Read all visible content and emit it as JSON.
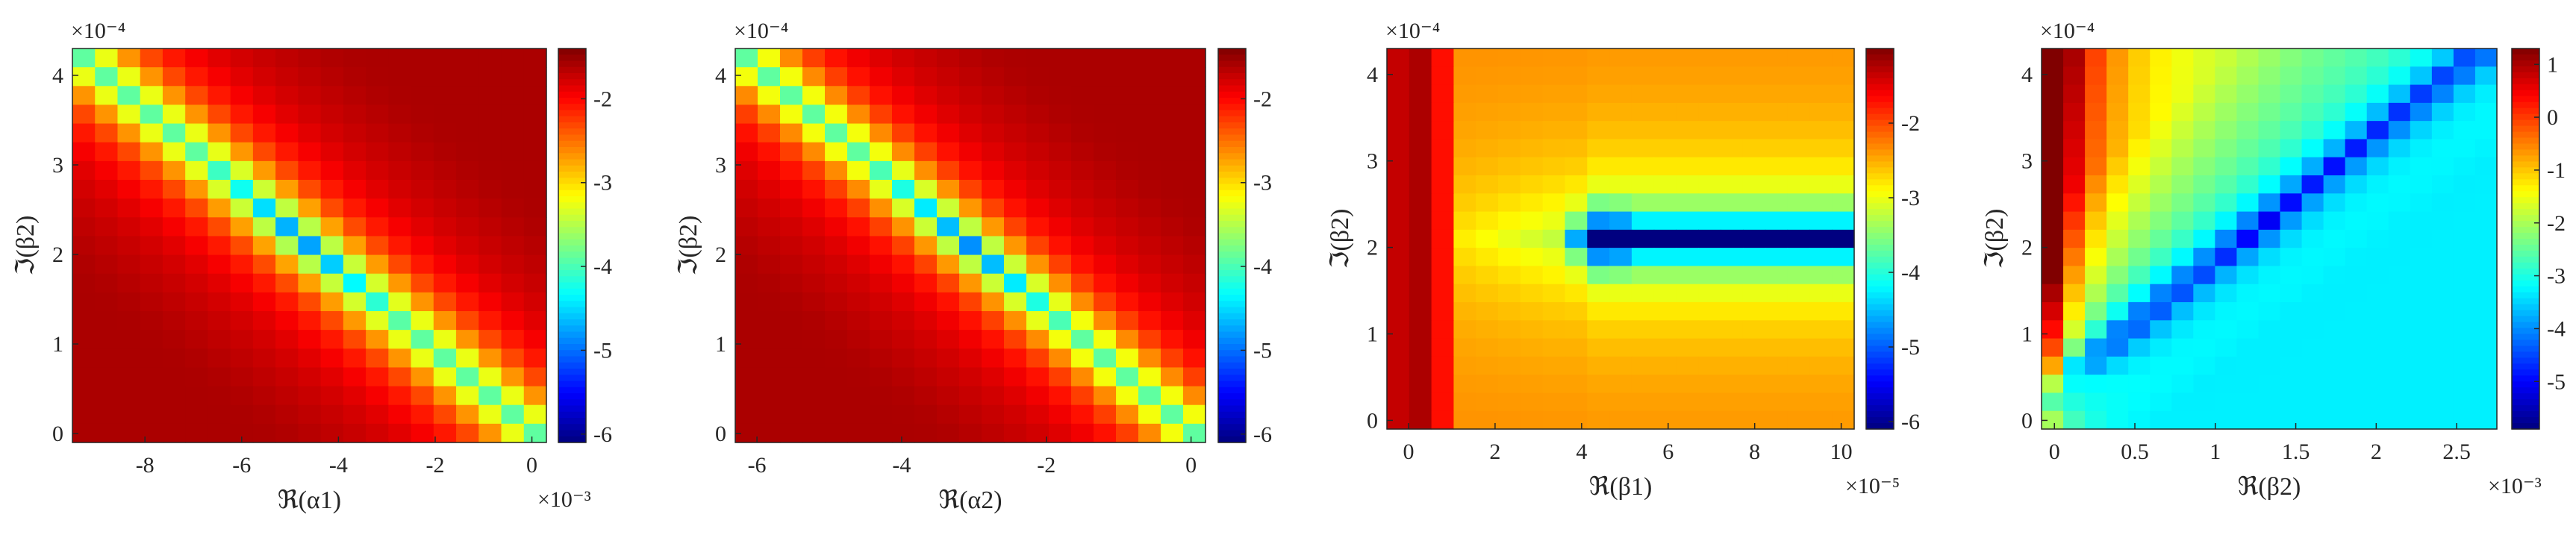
{
  "chart_data": [
    {
      "type": "heatmap",
      "xlabel": "ℜ(α1)",
      "ylabel": "ℑ(β2)",
      "x_range": [
        -0.0095,
        0.0003
      ],
      "y_range": [
        -1e-05,
        0.00043
      ],
      "x_ticks": [
        -0.008,
        -0.006,
        -0.004,
        -0.002,
        0
      ],
      "x_tick_labels": [
        "-8",
        "-6",
        "-4",
        "-2",
        "0"
      ],
      "x_exponent": "×10⁻³",
      "y_ticks": [
        0,
        0.0001,
        0.0002,
        0.0003,
        0.0004
      ],
      "y_tick_labels": [
        "0",
        "1",
        "2",
        "3",
        "4"
      ],
      "y_exponent": "×10⁻⁴",
      "colorbar_range": [
        -6.1,
        -1.4
      ],
      "colorbar_ticks": [
        -2,
        -3,
        -4,
        -5,
        -6
      ],
      "colorbar_tick_labels": [
        "-2",
        "-3",
        "-4",
        "-5",
        "-6"
      ],
      "grid_size": [
        21,
        21
      ],
      "colormap": "jet",
      "pattern": "diagonal valley from top-left (x≈-9.5e-3, y≈4.2e-4) to bottom-right (x≈0, y≈0); minimum ≈ -6 near x≈-4.5e-3, y≈2.1e-4"
    },
    {
      "type": "heatmap",
      "xlabel": "ℜ(α2)",
      "ylabel": "ℑ(β2)",
      "x_range": [
        -0.0063,
        0.0002
      ],
      "y_range": [
        -1e-05,
        0.00043
      ],
      "x_ticks": [
        -0.006,
        -0.004,
        -0.002,
        0
      ],
      "x_tick_labels": [
        "-6",
        "-4",
        "-2",
        "0"
      ],
      "x_exponent": "",
      "y_ticks": [
        0,
        0.0001,
        0.0002,
        0.0003,
        0.0004
      ],
      "y_tick_labels": [
        "0",
        "1",
        "2",
        "3",
        "4"
      ],
      "y_exponent": "×10⁻⁴",
      "colorbar_range": [
        -6.1,
        -1.4
      ],
      "colorbar_ticks": [
        -2,
        -3,
        -4,
        -5,
        -6
      ],
      "colorbar_tick_labels": [
        "-2",
        "-3",
        "-4",
        "-5",
        "-6"
      ],
      "grid_size": [
        21,
        21
      ],
      "colormap": "jet",
      "pattern": "diagonal valley from top-left (x≈-6.3e-3, y≈4.2e-4) to bottom-right (x≈0, y≈0); minimum ≈ -6 near x≈-3.1e-3, y≈2.1e-4"
    },
    {
      "type": "heatmap",
      "xlabel": "ℜ(β1)",
      "ylabel": "ℑ(β2)",
      "x_range": [
        -5e-06,
        0.000103
      ],
      "y_range": [
        -1e-05,
        0.00043
      ],
      "x_ticks": [
        0,
        2e-05,
        4e-05,
        6e-05,
        8e-05,
        0.0001
      ],
      "x_tick_labels": [
        "0",
        "2",
        "4",
        "6",
        "8",
        "10"
      ],
      "x_exponent": "×10⁻⁵",
      "y_ticks": [
        0,
        0.0001,
        0.0002,
        0.0003,
        0.0004
      ],
      "y_tick_labels": [
        "0",
        "1",
        "2",
        "3",
        "4"
      ],
      "y_exponent": "×10⁻⁴",
      "colorbar_range": [
        -6.1,
        -1.0
      ],
      "colorbar_ticks": [
        -2,
        -3,
        -4,
        -5,
        -6
      ],
      "colorbar_tick_labels": [
        "-2",
        "-3",
        "-4",
        "-5",
        "-6"
      ],
      "grid_size": [
        21,
        21
      ],
      "colormap": "jet",
      "pattern": "high values along x≈0; horizontal valley at y≈2.1e-4 for x ≥ 4e-5, minimum ≈ -6 near x≈5e-5"
    },
    {
      "type": "heatmap",
      "xlabel": "ℜ(β2)",
      "ylabel": "ℑ(β2)",
      "x_range": [
        -8e-05,
        0.00275
      ],
      "y_range": [
        -1e-05,
        0.00043
      ],
      "x_ticks": [
        0,
        0.0005,
        0.001,
        0.0015,
        0.002,
        0.0025
      ],
      "x_tick_labels": [
        "0",
        "0.5",
        "1",
        "1.5",
        "2",
        "2.5"
      ],
      "x_exponent": "×10⁻³",
      "y_ticks": [
        0,
        0.0001,
        0.0002,
        0.0003,
        0.0004
      ],
      "y_tick_labels": [
        "0",
        "1",
        "2",
        "3",
        "4"
      ],
      "y_exponent": "×10⁻⁴",
      "colorbar_range": [
        -5.9,
        1.3
      ],
      "colorbar_ticks": [
        1,
        0,
        -1,
        -2,
        -3,
        -4,
        -5
      ],
      "colorbar_tick_labels": [
        "1",
        "0",
        "-1",
        "-2",
        "-3",
        "-4",
        "-5"
      ],
      "grid_size": [
        21,
        21
      ],
      "colormap": "jet",
      "pattern": "highest values at x≈0; diagonal valley from (x≈0.1e-3, y≈0.5e-4) to top-right (x≈2.7e-3, y≈4.2e-4); minimum ≈ -5.5 near x≈1.3e-3, y≈2.1e-4"
    }
  ]
}
